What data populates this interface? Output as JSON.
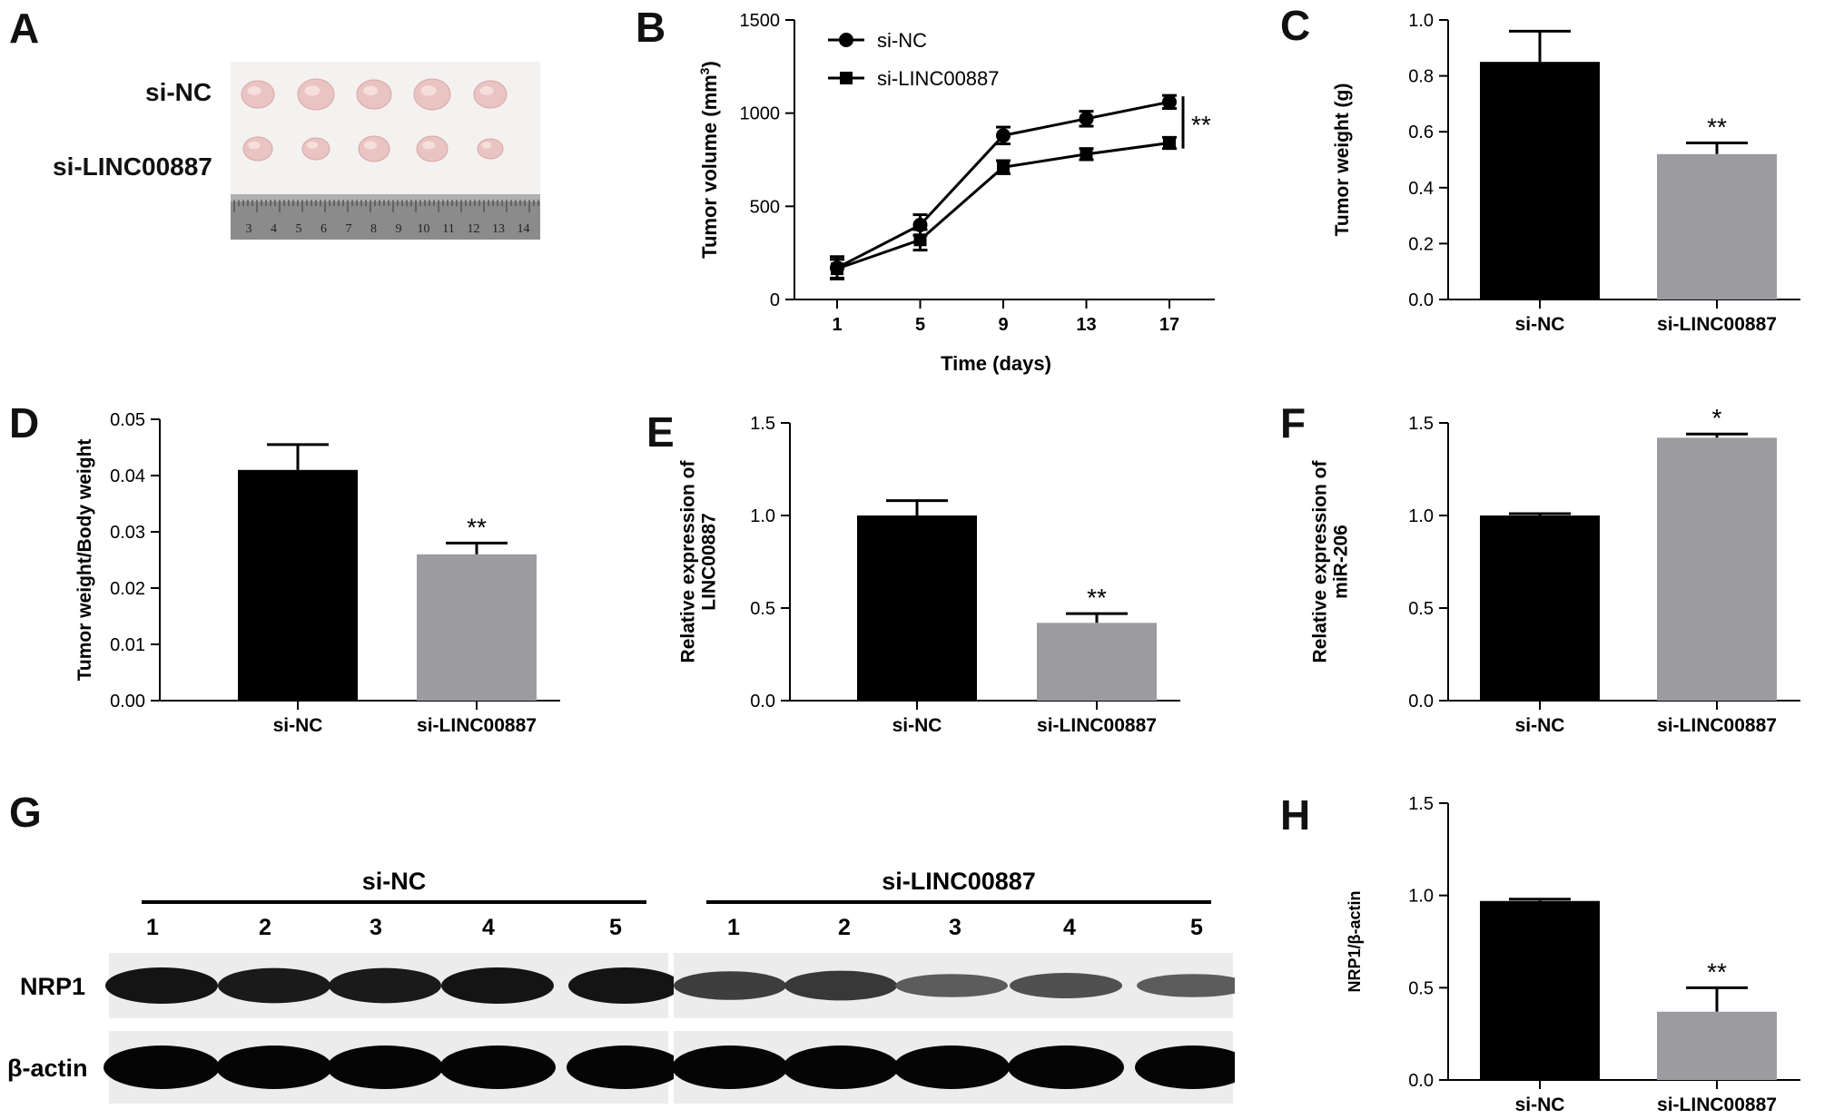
{
  "panels": {
    "A": {
      "label": "A",
      "row_labels": [
        "si-NC",
        "si-LINC00887"
      ],
      "ruler_numbers": [
        "3",
        "4",
        "5",
        "6",
        "7",
        "8",
        "9",
        "10",
        "11",
        "12",
        "13",
        "14"
      ],
      "tumors_per_group": 5
    },
    "G": {
      "label": "G",
      "groups": [
        "si-NC",
        "si-LINC00887"
      ],
      "lanes": [
        "1",
        "2",
        "3",
        "4",
        "5"
      ],
      "rows": [
        "NRP1",
        "β-actin"
      ],
      "nrp1_relative_intensity": {
        "si-NC": [
          1.0,
          0.95,
          0.95,
          1.0,
          1.0
        ],
        "si-LINC00887": [
          0.65,
          0.7,
          0.4,
          0.5,
          0.4
        ]
      }
    }
  },
  "chart_data": [
    {
      "panel": "B",
      "type": "line",
      "xlabel": "Time (days)",
      "ylabel": "Tumor volume (mm3)",
      "x": [
        1,
        5,
        9,
        13,
        17
      ],
      "xticks": [
        "1",
        "5",
        "9",
        "13",
        "17"
      ],
      "yticks": [
        "0",
        "500",
        "1000",
        "1500"
      ],
      "ylim": [
        0,
        1500
      ],
      "xlim": [
        -1,
        20
      ],
      "series": [
        {
          "name": "si-NC",
          "marker": "circle",
          "values": [
            170,
            400,
            880,
            970,
            1060
          ],
          "errors": [
            60,
            55,
            45,
            40,
            35
          ]
        },
        {
          "name": "si-LINC00887",
          "marker": "square",
          "values": [
            165,
            320,
            710,
            780,
            840
          ],
          "errors": [
            50,
            55,
            35,
            30,
            30
          ]
        }
      ],
      "annotation": "**",
      "legend_position": "top-left"
    },
    {
      "panel": "C",
      "type": "bar",
      "ylabel": "Tumor weight (g)",
      "categories": [
        "si-NC",
        "si-LINC00887"
      ],
      "values": [
        0.85,
        0.52
      ],
      "errors": [
        0.11,
        0.04
      ],
      "colors": [
        "#000000",
        "#9b9ba0"
      ],
      "annotations": [
        "",
        "**"
      ],
      "yticks": [
        "0.0",
        "0.2",
        "0.4",
        "0.6",
        "0.8",
        "1.0"
      ],
      "ylim": [
        0,
        1.0
      ]
    },
    {
      "panel": "D",
      "type": "bar",
      "ylabel": "Tumor weight/Body weight",
      "categories": [
        "si-NC",
        "si-LINC00887"
      ],
      "values": [
        0.041,
        0.026
      ],
      "errors": [
        0.0045,
        0.002
      ],
      "colors": [
        "#000000",
        "#9b9ba0"
      ],
      "annotations": [
        "",
        "**"
      ],
      "yticks": [
        "0.00",
        "0.01",
        "0.02",
        "0.03",
        "0.04",
        "0.05"
      ],
      "ylim": [
        0,
        0.05
      ]
    },
    {
      "panel": "E",
      "type": "bar",
      "ylabel": "Relative expression of LINC00887",
      "categories": [
        "si-NC",
        "si-LINC00887"
      ],
      "values": [
        1.0,
        0.42
      ],
      "errors": [
        0.08,
        0.05
      ],
      "colors": [
        "#000000",
        "#9b9ba0"
      ],
      "annotations": [
        "",
        "**"
      ],
      "yticks": [
        "0.0",
        "0.5",
        "1.0",
        "1.5"
      ],
      "ylim": [
        0,
        1.5
      ]
    },
    {
      "panel": "F",
      "type": "bar",
      "ylabel": "Relative expression of miR-206",
      "categories": [
        "si-NC",
        "si-LINC00887"
      ],
      "values": [
        1.0,
        1.42
      ],
      "errors": [
        0.01,
        0.02
      ],
      "colors": [
        "#000000",
        "#9b9ba0"
      ],
      "annotations": [
        "",
        "*"
      ],
      "yticks": [
        "0.0",
        "0.5",
        "1.0",
        "1.5"
      ],
      "ylim": [
        0,
        1.5
      ]
    },
    {
      "panel": "H",
      "type": "bar",
      "ylabel": "NRP1/β-actin",
      "categories": [
        "si-NC",
        "si-LINC00887"
      ],
      "values": [
        0.97,
        0.37
      ],
      "errors": [
        0.01,
        0.13
      ],
      "colors": [
        "#000000",
        "#9b9ba0"
      ],
      "annotations": [
        "",
        "**"
      ],
      "yticks": [
        "0.0",
        "0.5",
        "1.0",
        "1.5"
      ],
      "ylim": [
        0,
        1.5
      ]
    }
  ]
}
